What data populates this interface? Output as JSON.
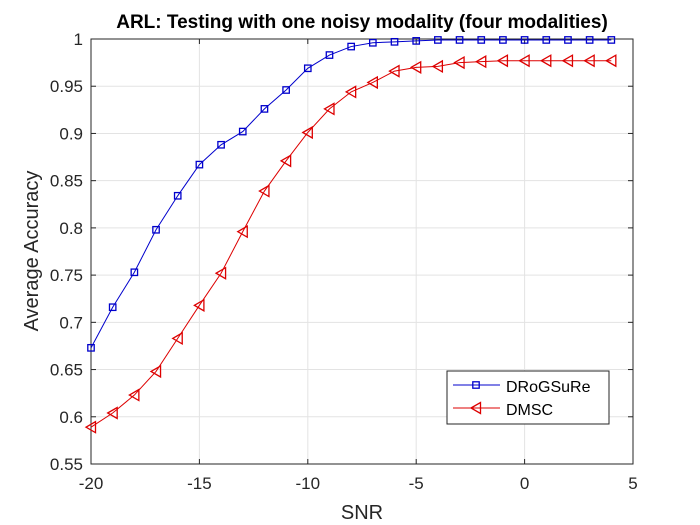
{
  "chart_data": {
    "type": "line",
    "title": "ARL: Testing with one noisy modality (four modalities)",
    "xlabel": "SNR",
    "ylabel": "Average Accuracy",
    "xlim": [
      -20,
      5
    ],
    "ylim": [
      0.55,
      1
    ],
    "xticks": [
      -20,
      -15,
      -10,
      -5,
      0,
      5
    ],
    "yticks": [
      0.55,
      0.6,
      0.65,
      0.7,
      0.75,
      0.8,
      0.85,
      0.9,
      0.95,
      1
    ],
    "xtick_labels": [
      "-20",
      "-15",
      "-10",
      "-5",
      "0",
      "5"
    ],
    "ytick_labels": [
      "0.55",
      "0.6",
      "0.65",
      "0.7",
      "0.75",
      "0.8",
      "0.85",
      "0.9",
      "0.95",
      "1"
    ],
    "grid": true,
    "legend_position": "bottom-right",
    "x": [
      -20,
      -19,
      -18,
      -17,
      -16,
      -15,
      -14,
      -13,
      -12,
      -11,
      -10,
      -9,
      -8,
      -7,
      -6,
      -5,
      -4,
      -3,
      -2,
      -1,
      0,
      1,
      2,
      3,
      4
    ],
    "series": [
      {
        "name": "DRoGSuRe",
        "color": "#0000cc",
        "marker": "square",
        "values": [
          0.673,
          0.716,
          0.753,
          0.798,
          0.834,
          0.867,
          0.888,
          0.902,
          0.926,
          0.946,
          0.969,
          0.983,
          0.992,
          0.996,
          0.997,
          0.998,
          0.999,
          0.999,
          0.999,
          0.999,
          0.999,
          0.999,
          0.999,
          0.999,
          0.999
        ]
      },
      {
        "name": "DMSC",
        "color": "#dd0000",
        "marker": "triangle-left",
        "values": [
          0.589,
          0.604,
          0.623,
          0.648,
          0.683,
          0.718,
          0.752,
          0.796,
          0.839,
          0.871,
          0.901,
          0.926,
          0.944,
          0.954,
          0.966,
          0.97,
          0.971,
          0.975,
          0.976,
          0.977,
          0.977,
          0.977,
          0.977,
          0.977,
          0.977
        ]
      }
    ]
  }
}
